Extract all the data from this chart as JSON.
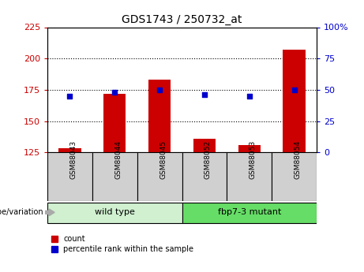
{
  "title": "GDS1743 / 250732_at",
  "samples": [
    "GSM88043",
    "GSM88044",
    "GSM88045",
    "GSM88052",
    "GSM88053",
    "GSM88054"
  ],
  "counts": [
    128,
    172,
    183,
    136,
    131,
    207
  ],
  "percentiles": [
    45,
    48,
    50,
    46,
    45,
    50
  ],
  "ylim_left": [
    125,
    225
  ],
  "ylim_right": [
    0,
    100
  ],
  "yticks_left": [
    125,
    150,
    175,
    200,
    225
  ],
  "yticks_right": [
    0,
    25,
    50,
    75,
    100
  ],
  "ytick_labels_right": [
    "0",
    "25",
    "50",
    "75",
    "100%"
  ],
  "bar_color": "#cc0000",
  "dot_color": "#0000cc",
  "bar_width": 0.5,
  "genotype_label": "genotype/variation",
  "legend_count_label": "count",
  "legend_percentile_label": "percentile rank within the sample",
  "group_wild_color": "#d0f0d0",
  "group_mutant_color": "#66dd66",
  "tick_bg_color": "#d0d0d0",
  "tick_label_color_left": "#cc0000",
  "tick_label_color_right": "#0000cc",
  "gridline_color": "black",
  "gridline_vals": [
    150,
    175,
    200
  ]
}
